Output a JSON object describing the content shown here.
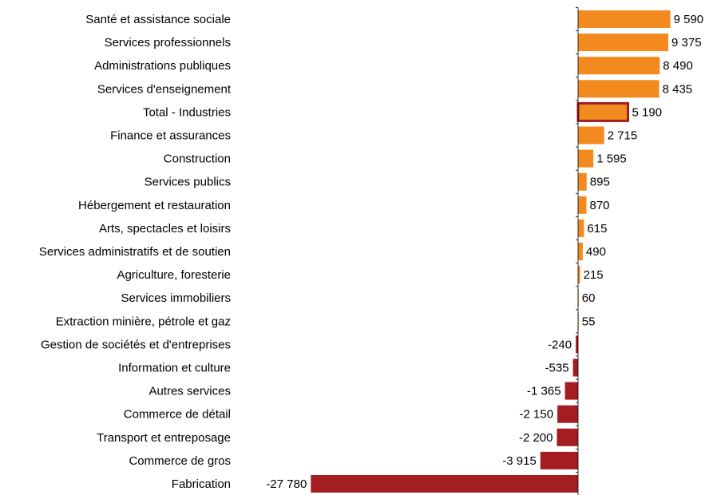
{
  "chart_data": {
    "type": "bar",
    "orientation": "horizontal",
    "categories": [
      "Santé et assistance sociale",
      "Services professionnels",
      "Administrations publiques",
      "Services d'enseignement",
      "Total - Industries",
      "Finance et assurances",
      "Construction",
      "Services publics",
      "Hébergement et restauration",
      "Arts, spectacles et loisirs",
      "Services administratifs et de soutien",
      "Agriculture, foresterie",
      "Services immobiliers",
      "Extraction minière, pétrole et gaz",
      "Gestion de sociétés et d'entreprises",
      "Information et culture",
      "Autres services",
      "Commerce de détail",
      "Transport et entreposage",
      "Commerce de gros",
      "Fabrication"
    ],
    "values": [
      9590,
      9375,
      8490,
      8435,
      5190,
      2715,
      1595,
      895,
      870,
      615,
      490,
      215,
      60,
      55,
      -240,
      -535,
      -1365,
      -2150,
      -2200,
      -3915,
      -27780
    ],
    "value_labels": [
      "9 590",
      "9 375",
      "8 490",
      "8 435",
      "5 190",
      "2 715",
      "1 595",
      "895",
      "870",
      "615",
      "490",
      "215",
      "60",
      "55",
      "-240",
      "-535",
      "-1 365",
      "-2 150",
      "-2 200",
      "-3 915",
      "-27 780"
    ],
    "highlight": "Total - Industries",
    "colors": {
      "positive": "#f28a1f",
      "negative": "#a31d21",
      "highlight_border": "#a31d21",
      "axis": "#000000"
    },
    "xlim": [
      -28300,
      10300
    ],
    "title": "",
    "xlabel": "",
    "ylabel": "",
    "grid": false,
    "legend": "none"
  }
}
